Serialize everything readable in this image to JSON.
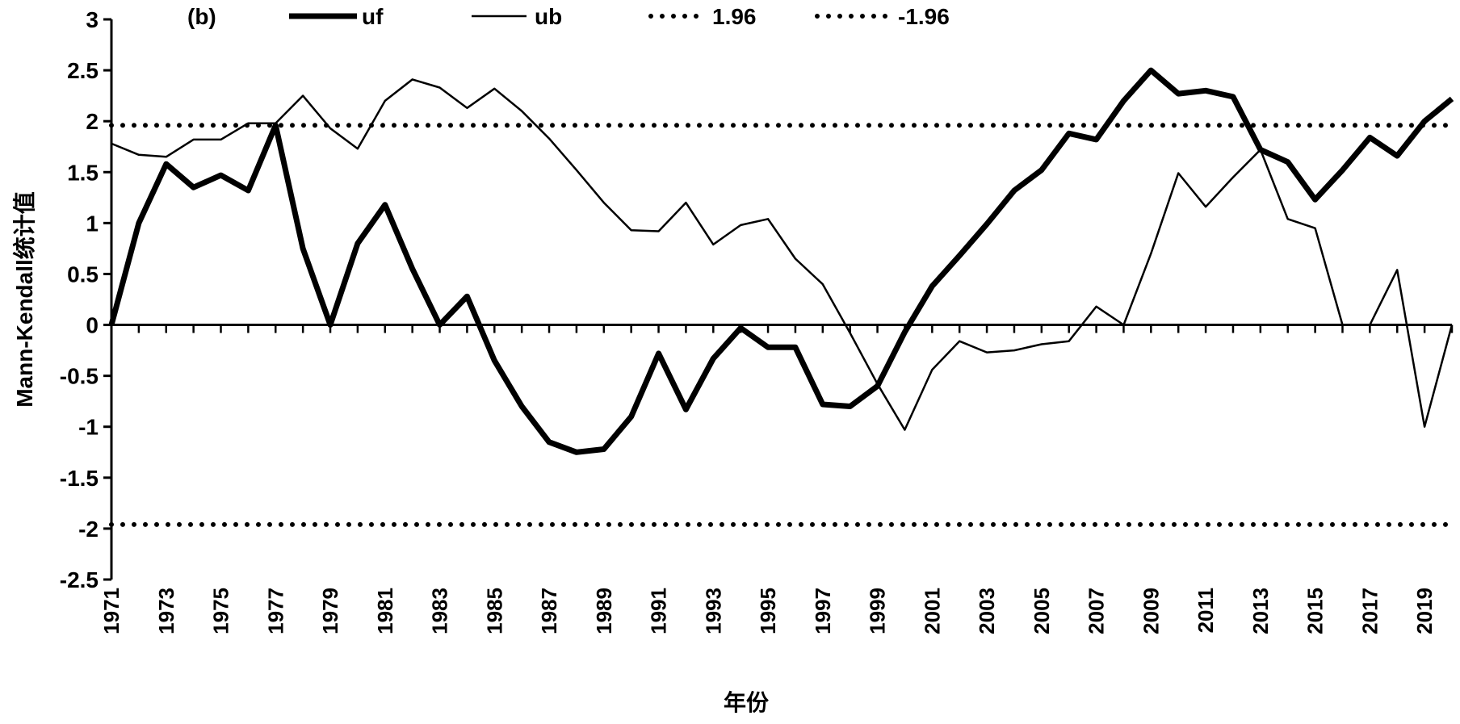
{
  "chart_data": {
    "type": "line",
    "panel_label": "(b)",
    "xlabel": "年份",
    "ylabel": "Mann-Kendall统计值",
    "ylim": [
      -2.5,
      3
    ],
    "y_ticks": [
      3,
      2.5,
      2,
      1.5,
      1,
      0.5,
      0,
      -0.5,
      -1,
      -1.5,
      -2,
      -2.5
    ],
    "y_tick_labels": [
      "3",
      "2.5",
      "2",
      "1.5",
      "1",
      "0.5",
      "0",
      "-0.5",
      "-1",
      "-1.5",
      "-2",
      "-2.5"
    ],
    "x": [
      1971,
      1972,
      1973,
      1974,
      1975,
      1976,
      1977,
      1978,
      1979,
      1980,
      1981,
      1982,
      1983,
      1984,
      1985,
      1986,
      1987,
      1988,
      1989,
      1990,
      1991,
      1992,
      1993,
      1994,
      1995,
      1996,
      1997,
      1998,
      1999,
      2000,
      2001,
      2002,
      2003,
      2004,
      2005,
      2006,
      2007,
      2008,
      2009,
      2010,
      2011,
      2012,
      2013,
      2014,
      2015,
      2016,
      2017,
      2018,
      2019,
      2020
    ],
    "x_tick_labels": [
      "1971",
      "1973",
      "1975",
      "1977",
      "1979",
      "1981",
      "1983",
      "1985",
      "1987",
      "1989",
      "1991",
      "1993",
      "1995",
      "1997",
      "1999",
      "2001",
      "2003",
      "2005",
      "2007",
      "2009",
      "2011",
      "2013",
      "2015",
      "2017",
      "2019"
    ],
    "series": [
      {
        "name": "uf",
        "style": "thick-solid",
        "color": "#000000",
        "values": [
          0,
          1.0,
          1.58,
          1.35,
          1.47,
          1.32,
          1.96,
          0.75,
          0,
          0.8,
          1.18,
          0.55,
          0,
          0.28,
          -0.35,
          -0.8,
          -1.15,
          -1.25,
          -1.22,
          -0.9,
          -0.28,
          -0.83,
          -0.33,
          -0.03,
          -0.22,
          -0.22,
          -0.78,
          -0.8,
          -0.6,
          -0.07,
          0.38,
          0.68,
          0.99,
          1.32,
          1.52,
          1.88,
          1.82,
          2.2,
          2.5,
          2.27,
          2.3,
          2.24,
          1.72,
          1.6,
          1.23,
          1.52,
          1.84,
          1.66,
          2.0,
          2.22
        ]
      },
      {
        "name": "ub",
        "style": "thin-solid",
        "color": "#000000",
        "values": [
          1.78,
          1.67,
          1.65,
          1.82,
          1.82,
          1.98,
          1.98,
          2.25,
          1.93,
          1.73,
          2.2,
          2.41,
          2.33,
          2.13,
          2.32,
          2.1,
          1.83,
          1.52,
          1.2,
          0.93,
          0.92,
          1.2,
          0.79,
          0.98,
          1.04,
          0.65,
          0.4,
          -0.08,
          -0.58,
          -1.03,
          -0.44,
          -0.16,
          -0.27,
          -0.25,
          -0.19,
          -0.16,
          0.18,
          0,
          0.7,
          1.49,
          1.16,
          1.45,
          1.72,
          1.04,
          0.95,
          0,
          0,
          0.54,
          -1.0,
          0
        ]
      },
      {
        "name": "1.96",
        "style": "dotted",
        "color": "#000000",
        "constant": 1.96
      },
      {
        "name": "-1.96",
        "style": "dotted",
        "color": "#000000",
        "constant": -1.96
      }
    ],
    "legend_placement": "top",
    "grid": false
  }
}
